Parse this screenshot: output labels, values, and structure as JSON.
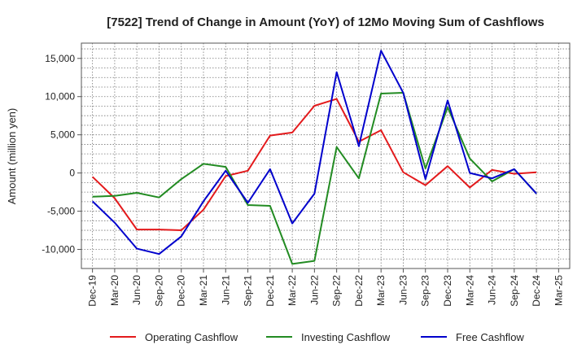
{
  "chart_data": {
    "type": "line",
    "title": "[7522]  Trend of Change in Amount (YoY) of 12Mo Moving Sum of Cashflows",
    "xlabel": "",
    "ylabel": "Amount (million yen)",
    "ylim": [
      -12500,
      17000
    ],
    "yticks": [
      15000,
      10000,
      5000,
      0,
      -5000,
      -10000
    ],
    "ytick_labels": [
      "15,000",
      "10,000",
      "5,000",
      "0",
      "-5,000",
      "-10,000"
    ],
    "grid": true,
    "legend_position": "bottom",
    "categories": [
      "Dec-19",
      "Mar-20",
      "Jun-20",
      "Sep-20",
      "Dec-20",
      "Mar-21",
      "Jun-21",
      "Sep-21",
      "Dec-21",
      "Mar-22",
      "Jun-22",
      "Sep-22",
      "Dec-22",
      "Mar-23",
      "Jun-23",
      "Sep-23",
      "Dec-23",
      "Mar-24",
      "Jun-24",
      "Sep-24",
      "Dec-24",
      "Mar-25"
    ],
    "series": [
      {
        "name": "Operating Cashflow",
        "color": "#e31a1c",
        "values": [
          -500,
          -3300,
          -7400,
          -7400,
          -7500,
          -4800,
          -400,
          300,
          4900,
          5300,
          8800,
          9700,
          4100,
          5600,
          100,
          -1600,
          900,
          -1900,
          400,
          -100,
          100,
          null
        ]
      },
      {
        "name": "Investing Cashflow",
        "color": "#228b22",
        "values": [
          -3100,
          -3000,
          -2600,
          -3200,
          -800,
          1200,
          800,
          -4200,
          -4300,
          -11900,
          -11500,
          3400,
          -700,
          10400,
          10500,
          600,
          8600,
          1900,
          -1100,
          500,
          -2700,
          null
        ]
      },
      {
        "name": "Free Cashflow",
        "color": "#0000cc",
        "values": [
          -3700,
          -6500,
          -9900,
          -10600,
          -8300,
          -3700,
          300,
          -3900,
          500,
          -6600,
          -2700,
          13200,
          3500,
          16000,
          10500,
          -800,
          9500,
          0,
          -700,
          500,
          -2700,
          null
        ]
      }
    ]
  }
}
